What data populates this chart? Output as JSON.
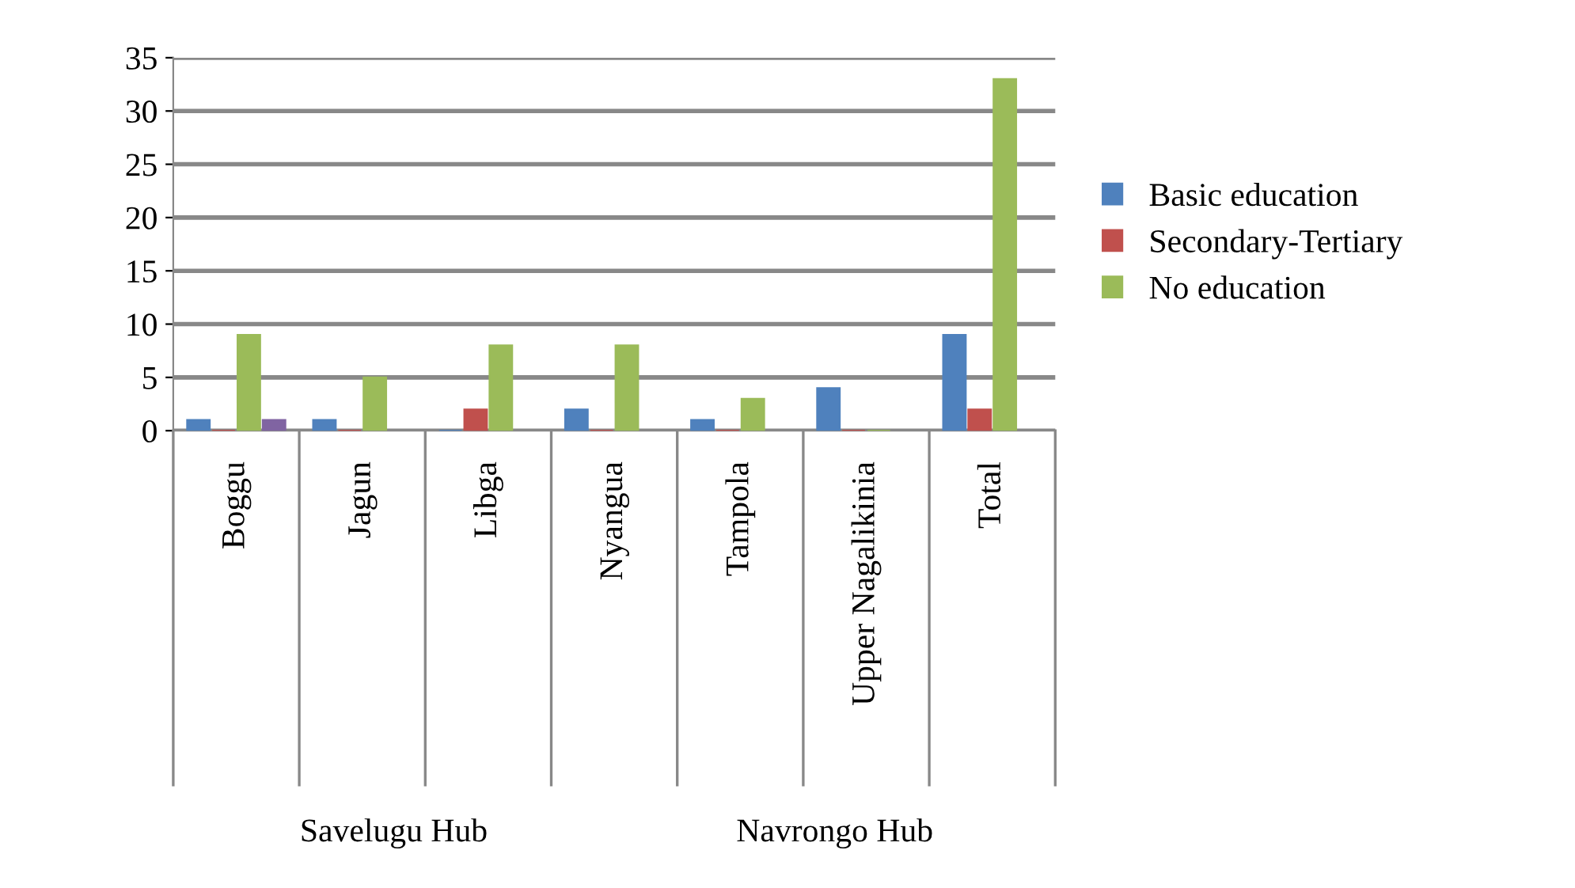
{
  "chart_data": {
    "type": "bar",
    "categories": [
      "Boggu",
      "Jagun",
      "Libga",
      "Nyangua",
      "Tampola",
      "Upper Nagalikinia",
      "Total"
    ],
    "series": [
      {
        "name": "Basic education",
        "color": "#4f81bd",
        "values": [
          1,
          1,
          0,
          2,
          1,
          4,
          9
        ]
      },
      {
        "name": "Secondary-Tertiary",
        "color": "#c0504d",
        "values": [
          0,
          0,
          2,
          0,
          0,
          0,
          2
        ]
      },
      {
        "name": "No education",
        "color": "#9bbb59",
        "values": [
          9,
          5,
          8,
          8,
          3,
          0,
          33
        ]
      },
      {
        "color": "#8064a2",
        "values": [
          1,
          null,
          null,
          null,
          null,
          null,
          null
        ]
      }
    ],
    "annotations": [
      "Savelugu Hub",
      "Navrongo Hub"
    ],
    "ylim": [
      0,
      35
    ],
    "yticks": [
      0,
      5,
      10,
      15,
      20,
      25,
      30,
      35
    ],
    "grid": "y",
    "legend": "right"
  }
}
